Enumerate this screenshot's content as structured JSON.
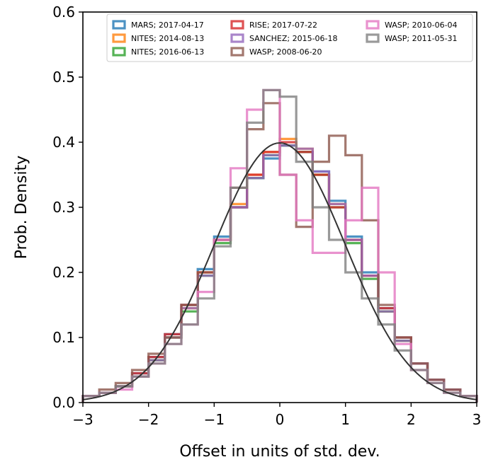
{
  "chart_data": {
    "type": "line",
    "xlabel": "Offset in units of std. dev.",
    "ylabel": "Prob. Density",
    "xlim": [
      -3,
      3
    ],
    "ylim": [
      0,
      0.6
    ],
    "x_ticks": [
      -3,
      -2,
      -1,
      0,
      1,
      2,
      3
    ],
    "y_ticks": [
      0.0,
      0.1,
      0.2,
      0.3,
      0.4,
      0.5,
      0.6
    ],
    "x_tick_labels": [
      "−3",
      "−2",
      "−1",
      "0",
      "1",
      "2",
      "3"
    ],
    "y_tick_labels": [
      "0.0",
      "0.1",
      "0.2",
      "0.3",
      "0.4",
      "0.5",
      "0.6"
    ],
    "legend_placement": "top",
    "grid": false,
    "reference_curve": {
      "shape": "standard normal pdf",
      "color": "#333333",
      "x": [
        -3,
        -2.5,
        -2,
        -1.5,
        -1,
        -0.5,
        0,
        0.5,
        1,
        1.5,
        2,
        2.5,
        3
      ],
      "y": [
        0.004,
        0.018,
        0.054,
        0.13,
        0.242,
        0.352,
        0.399,
        0.352,
        0.242,
        0.13,
        0.054,
        0.018,
        0.004
      ]
    },
    "series": [
      {
        "name": "MARS; 2017-04-17",
        "color": "#1f77b4",
        "x": [
          -3,
          -2.75,
          -2.5,
          -2.25,
          -2,
          -1.75,
          -1.5,
          -1.25,
          -1,
          -0.75,
          -0.5,
          -0.25,
          0,
          0.25,
          0.5,
          0.75,
          1,
          1.25,
          1.5,
          1.75,
          2,
          2.25,
          2.5,
          2.75
        ],
        "y": [
          0.01,
          0.015,
          0.025,
          0.045,
          0.07,
          0.105,
          0.15,
          0.205,
          0.255,
          0.3,
          0.345,
          0.375,
          0.395,
          0.385,
          0.355,
          0.31,
          0.255,
          0.2,
          0.145,
          0.1,
          0.06,
          0.035,
          0.02,
          0.01
        ]
      },
      {
        "name": "NITES; 2014-08-13",
        "color": "#ff7f0e",
        "x": [
          -3,
          -2.75,
          -2.5,
          -2.25,
          -2,
          -1.75,
          -1.5,
          -1.25,
          -1,
          -0.75,
          -0.5,
          -0.25,
          0,
          0.25,
          0.5,
          0.75,
          1,
          1.25,
          1.5,
          1.75,
          2,
          2.25,
          2.5,
          2.75
        ],
        "y": [
          0.01,
          0.015,
          0.025,
          0.04,
          0.065,
          0.1,
          0.145,
          0.2,
          0.25,
          0.305,
          0.35,
          0.385,
          0.405,
          0.39,
          0.35,
          0.305,
          0.25,
          0.195,
          0.14,
          0.095,
          0.06,
          0.035,
          0.02,
          0.01
        ]
      },
      {
        "name": "NITES; 2016-06-13",
        "color": "#2ca02c",
        "x": [
          -3,
          -2.75,
          -2.5,
          -2.25,
          -2,
          -1.75,
          -1.5,
          -1.25,
          -1,
          -0.75,
          -0.5,
          -0.25,
          0,
          0.25,
          0.5,
          0.75,
          1,
          1.25,
          1.5,
          1.75,
          2,
          2.25,
          2.5,
          2.75
        ],
        "y": [
          0.01,
          0.015,
          0.025,
          0.04,
          0.065,
          0.1,
          0.14,
          0.195,
          0.245,
          0.3,
          0.345,
          0.38,
          0.395,
          0.385,
          0.35,
          0.3,
          0.245,
          0.19,
          0.14,
          0.095,
          0.06,
          0.035,
          0.02,
          0.01
        ]
      },
      {
        "name": "RISE; 2017-07-22",
        "color": "#d62728",
        "x": [
          -3,
          -2.75,
          -2.5,
          -2.25,
          -2,
          -1.75,
          -1.5,
          -1.25,
          -1,
          -0.75,
          -0.5,
          -0.25,
          0,
          0.25,
          0.5,
          0.75,
          1,
          1.25,
          1.5,
          1.75,
          2,
          2.25,
          2.5,
          2.75
        ],
        "y": [
          0.01,
          0.015,
          0.025,
          0.045,
          0.07,
          0.105,
          0.15,
          0.2,
          0.25,
          0.3,
          0.35,
          0.385,
          0.4,
          0.385,
          0.35,
          0.3,
          0.25,
          0.195,
          0.145,
          0.1,
          0.06,
          0.035,
          0.02,
          0.01
        ]
      },
      {
        "name": "SANCHEZ; 2015-06-18",
        "color": "#9467bd",
        "x": [
          -3,
          -2.75,
          -2.5,
          -2.25,
          -2,
          -1.75,
          -1.5,
          -1.25,
          -1,
          -0.75,
          -0.5,
          -0.25,
          0,
          0.25,
          0.5,
          0.75,
          1,
          1.25,
          1.5,
          1.75,
          2,
          2.25,
          2.5,
          2.75
        ],
        "y": [
          0.01,
          0.015,
          0.025,
          0.04,
          0.065,
          0.1,
          0.145,
          0.195,
          0.25,
          0.3,
          0.345,
          0.38,
          0.395,
          0.39,
          0.355,
          0.305,
          0.25,
          0.195,
          0.14,
          0.095,
          0.06,
          0.035,
          0.02,
          0.01
        ]
      },
      {
        "name": "WASP; 2008-06-20",
        "color": "#8c564b",
        "x": [
          -3,
          -2.75,
          -2.5,
          -2.25,
          -2,
          -1.75,
          -1.5,
          -1.25,
          -1,
          -0.75,
          -0.5,
          -0.25,
          0,
          0.25,
          0.5,
          0.75,
          1,
          1.25,
          1.5,
          1.75,
          2,
          2.25,
          2.5,
          2.75
        ],
        "y": [
          0.01,
          0.02,
          0.03,
          0.05,
          0.075,
          0.1,
          0.15,
          0.2,
          0.25,
          0.33,
          0.42,
          0.46,
          0.35,
          0.27,
          0.37,
          0.41,
          0.38,
          0.28,
          0.15,
          0.1,
          0.06,
          0.035,
          0.02,
          0.01
        ]
      },
      {
        "name": "WASP; 2010-06-04",
        "color": "#e377c2",
        "x": [
          -3,
          -2.75,
          -2.5,
          -2.25,
          -2,
          -1.75,
          -1.5,
          -1.25,
          -1,
          -0.75,
          -0.5,
          -0.25,
          0,
          0.25,
          0.5,
          0.75,
          1,
          1.25,
          1.5,
          1.75,
          2,
          2.25,
          2.5,
          2.75
        ],
        "y": [
          0.01,
          0.015,
          0.02,
          0.04,
          0.06,
          0.09,
          0.12,
          0.17,
          0.25,
          0.36,
          0.45,
          0.48,
          0.35,
          0.28,
          0.23,
          0.23,
          0.28,
          0.33,
          0.2,
          0.09,
          0.05,
          0.03,
          0.015,
          0.01
        ]
      },
      {
        "name": "WASP; 2011-05-31",
        "color": "#7f7f7f",
        "x": [
          -3,
          -2.75,
          -2.5,
          -2.25,
          -2,
          -1.75,
          -1.5,
          -1.25,
          -1,
          -0.75,
          -0.5,
          -0.25,
          0,
          0.25,
          0.5,
          0.75,
          1,
          1.25,
          1.5,
          1.75,
          2,
          2.25,
          2.5,
          2.75
        ],
        "y": [
          0.01,
          0.015,
          0.025,
          0.04,
          0.06,
          0.09,
          0.12,
          0.16,
          0.24,
          0.33,
          0.43,
          0.48,
          0.47,
          0.37,
          0.3,
          0.25,
          0.2,
          0.16,
          0.12,
          0.08,
          0.05,
          0.03,
          0.015,
          0.01
        ]
      }
    ]
  }
}
